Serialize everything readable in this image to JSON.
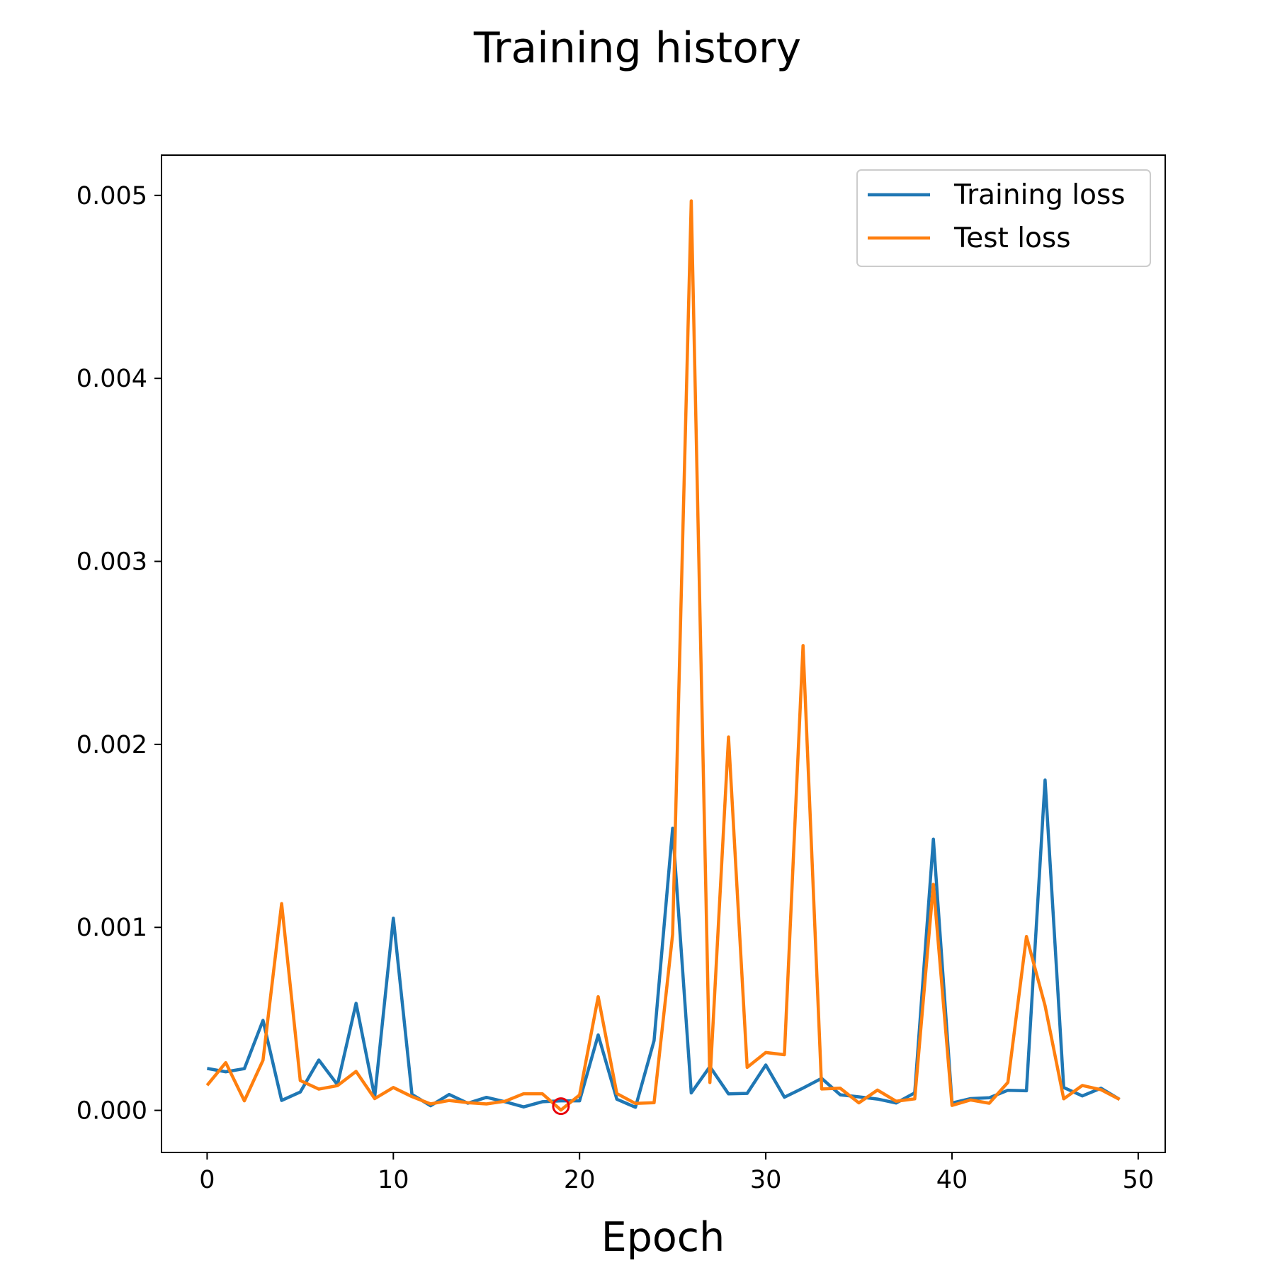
{
  "chart_data": {
    "type": "line",
    "title": "Training history",
    "xlabel": "Epoch",
    "ylabel": "",
    "xlim": [
      -2.45,
      51.45
    ],
    "ylim": [
      -0.00023,
      0.00522
    ],
    "xticks": [
      0,
      10,
      20,
      30,
      40,
      50
    ],
    "xtick_labels": [
      "0",
      "10",
      "20",
      "30",
      "40",
      "50"
    ],
    "yticks": [
      0,
      0.001,
      0.002,
      0.003,
      0.004,
      0.005
    ],
    "ytick_labels": [
      "0.000",
      "0.001",
      "0.002",
      "0.003",
      "0.004",
      "0.005"
    ],
    "grid": false,
    "legend_position": "top-right",
    "x": [
      0,
      1,
      2,
      3,
      4,
      5,
      6,
      7,
      8,
      9,
      10,
      11,
      12,
      13,
      14,
      15,
      16,
      17,
      18,
      19,
      20,
      21,
      22,
      23,
      24,
      25,
      26,
      27,
      28,
      29,
      30,
      31,
      32,
      33,
      34,
      35,
      36,
      37,
      38,
      39,
      40,
      41,
      42,
      43,
      44,
      45,
      46,
      47,
      48,
      49
    ],
    "series": [
      {
        "name": "Training loss",
        "color": "#1f77b4",
        "values": [
          0.000229,
          0.000211,
          0.000228,
          0.000492,
          5.4e-05,
          0.0001,
          0.000275,
          0.00014,
          0.000585,
          7.4e-05,
          0.00105,
          8.7e-05,
          2.5e-05,
          8.7e-05,
          3.9e-05,
          7.1e-05,
          4.7e-05,
          1.9e-05,
          4.7e-05,
          5.2e-05,
          5.2e-05,
          0.000412,
          6.1e-05,
          1.7e-05,
          0.000381,
          0.001542,
          9.5e-05,
          0.000239,
          9e-05,
          9.3e-05,
          0.000248,
          7.2e-05,
          0.000122,
          0.000175,
          8.5e-05,
          7.4e-05,
          6.2e-05,
          4e-05,
          9.6e-05,
          0.001482,
          4e-05,
          6.4e-05,
          6.9e-05,
          0.00011,
          0.000107,
          0.001805,
          0.000125,
          7.9e-05,
          0.000121,
          6e-05
        ]
      },
      {
        "name": "Test loss",
        "color": "#ff7f0e",
        "values": [
          0.000137,
          0.000261,
          5.2e-05,
          0.000274,
          0.00113,
          0.000163,
          0.000116,
          0.000135,
          0.000213,
          6.4e-05,
          0.000125,
          7.5e-05,
          3.5e-05,
          5.4e-05,
          4.2e-05,
          3.5e-05,
          5e-05,
          9.1e-05,
          9.1e-05,
          2e-06,
          8.4e-05,
          0.000621,
          9.2e-05,
          3.8e-05,
          4.2e-05,
          0.000962,
          0.00497,
          0.000152,
          0.00204,
          0.000235,
          0.000316,
          0.000304,
          0.00254,
          0.000117,
          0.000121,
          4.1e-05,
          0.000111,
          5e-05,
          6.3e-05,
          0.001235,
          2.7e-05,
          5.7e-05,
          3.9e-05,
          0.000153,
          0.00095,
          0.000572,
          6.3e-05,
          0.000136,
          0.000113,
          6e-05
        ]
      }
    ],
    "annotations": [
      {
        "type": "circle-marker",
        "x": 19,
        "y": 2.3e-05,
        "color": "#e8000b"
      }
    ]
  }
}
